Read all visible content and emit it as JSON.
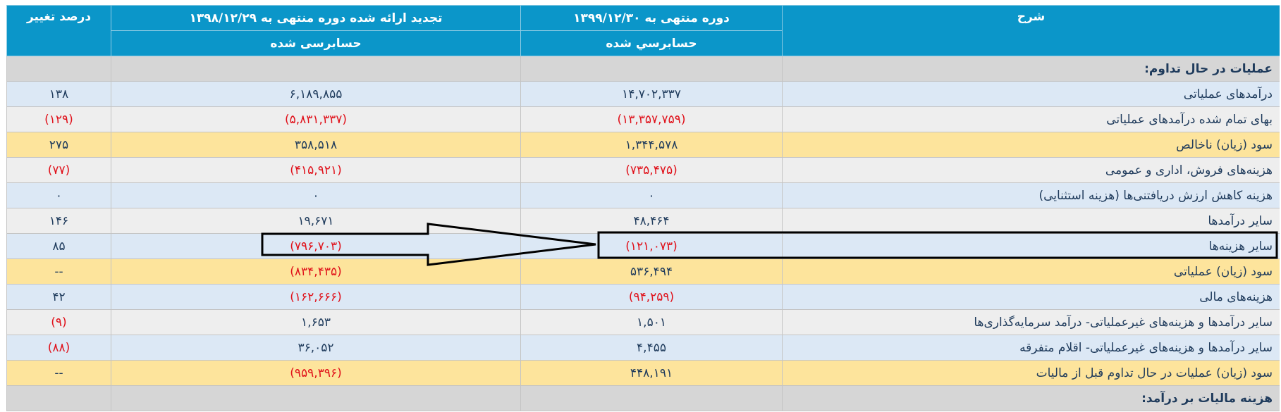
{
  "table": {
    "headers": {
      "description": "شرح",
      "current": "دوره منتهی به ۱۳۹۹/۱۲/۳۰",
      "current_status": "حسابرسي شده",
      "previous": "تجدید ارائه شده دوره منتهی به ۱۳۹۸/۱۲/۲۹",
      "previous_status": "حسابرسی شده",
      "change": "درصد تغییر"
    },
    "rows": [
      {
        "label": "عملیات در حال تداوم:",
        "color": "#d6d6d6",
        "section": true
      },
      {
        "label": "درآمدهای عملیاتی",
        "current": "۱۴,۷۰۲,۳۳۷",
        "previous": "۶,۱۸۹,۸۵۵",
        "change": "۱۳۸",
        "color": "#dce8f5"
      },
      {
        "label": "بهای تمام شده درآمدهای عملیاتی",
        "current": "(۱۳,۳۵۷,۷۵۹)",
        "previous": "(۵,۸۳۱,۳۳۷)",
        "change": "(۱۲۹)",
        "color": "#eeeeee"
      },
      {
        "label": "سود (زیان) ناخالص",
        "current": "۱,۳۴۴,۵۷۸",
        "previous": "۳۵۸,۵۱۸",
        "change": "۲۷۵",
        "color": "#fde49c"
      },
      {
        "label": "هزینه‌های فروش، اداری و عمومی",
        "current": "(۷۳۵,۴۷۵)",
        "previous": "(۴۱۵,۹۲۱)",
        "change": "(۷۷)",
        "color": "#eeeeee"
      },
      {
        "label": "هزینه کاهش ارزش دریافتنی‌ها (هزینه استثنایی)",
        "current": "۰",
        "previous": "۰",
        "change": "۰",
        "color": "#dce8f5"
      },
      {
        "label": "سایر درآمدها",
        "current": "۴۸,۴۶۴",
        "previous": "۱۹,۶۷۱",
        "change": "۱۴۶",
        "color": "#eeeeee"
      },
      {
        "label": "سایر هزینه‌ها",
        "current": "(۱۲۱,۰۷۳)",
        "previous": "(۷۹۶,۷۰۳)",
        "change": "۸۵",
        "color": "#dce8f5"
      },
      {
        "label": "سود (زیان) عملیاتی",
        "current": "۵۳۶,۴۹۴",
        "previous": "(۸۳۴,۴۳۵)",
        "change": "--",
        "color": "#fde49c"
      },
      {
        "label": "هزینه‌های مالی",
        "current": "(۹۴,۲۵۹)",
        "previous": "(۱۶۲,۶۶۶)",
        "change": "۴۲",
        "color": "#dce8f5"
      },
      {
        "label": "سایر درآمدها و هزینه‌های غیرعملیاتی- درآمد سرمایه‌گذاری‌ها",
        "current": "۱,۵۰۱",
        "previous": "۱,۶۵۳",
        "change": "(۹)",
        "color": "#eeeeee"
      },
      {
        "label": "سایر درآمدها و هزینه‌های غیرعملیاتی- اقلام متفرقه",
        "current": "۴,۴۵۵",
        "previous": "۳۶,۰۵۲",
        "change": "(۸۸)",
        "color": "#dce8f5"
      },
      {
        "label": "سود (زیان) عملیات در حال تداوم قبل از مالیات",
        "current": "۴۴۸,۱۹۱",
        "previous": "(۹۵۹,۳۹۶)",
        "change": "--",
        "color": "#fde49c"
      },
      {
        "label": "هزینه مالیات بر درآمد:",
        "color": "#d6d6d6",
        "section": true
      }
    ]
  }
}
